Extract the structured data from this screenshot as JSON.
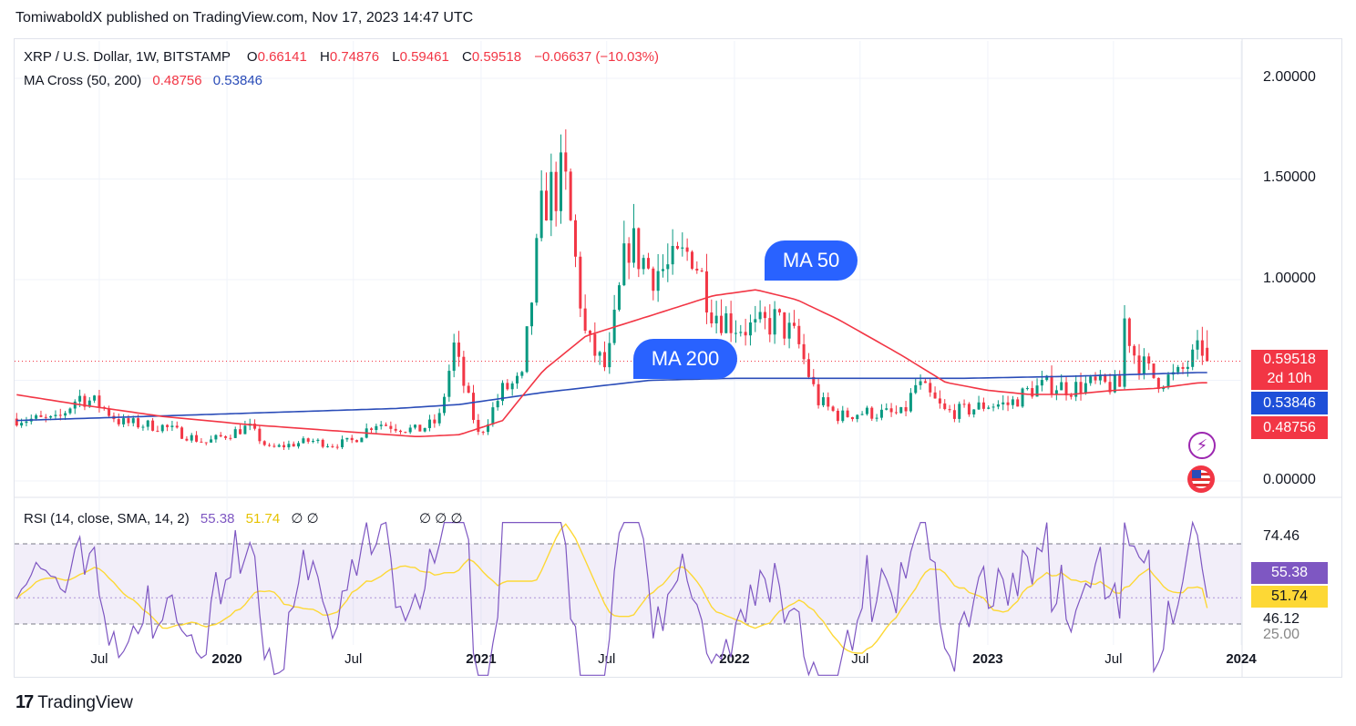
{
  "header": {
    "text": "TomiwaboldX published on TradingView.com, Nov 17, 2023 14:47 UTC"
  },
  "legend": {
    "symbol": "XRP / U.S. Dollar, 1W, BITSTAMP",
    "o_label": "O",
    "o_value": "0.66141",
    "h_label": "H",
    "h_value": "0.74876",
    "l_label": "L",
    "l_value": "0.59461",
    "c_label": "C",
    "c_value": "0.59518",
    "change": "−0.06637 (−10.03%)",
    "ma_label": "MA Cross (50, 200)",
    "ma50_value": "0.48756",
    "ma200_value": "0.53846",
    "rsi_label": "RSI (14, close, SMA, 14, 2)",
    "rsi_value": "55.38",
    "rsi_sma_value": "51.74",
    "rsi_extra": "∅  ∅",
    "rsi_div_markers": "∅  ∅  ∅"
  },
  "price_axis": [
    "2.00000",
    "1.50000",
    "1.00000",
    "0.00000"
  ],
  "price_tags": {
    "last": "0.59518",
    "countdown": "2d 10h",
    "ma200": "0.53846",
    "ma50": "0.48756"
  },
  "rsi_axis": [
    "74.46",
    "46.12",
    "25.00"
  ],
  "rsi_tags": {
    "rsi": "55.38",
    "sma": "51.74"
  },
  "time_axis": [
    "Jul",
    "2020",
    "Jul",
    "2021",
    "Jul",
    "2022",
    "Jul",
    "2023",
    "Jul",
    "2024"
  ],
  "callouts": {
    "ma50": "MA 50",
    "ma200": "MA 200"
  },
  "footer": {
    "brand": "TradingView"
  },
  "colors": {
    "up": "#089981",
    "down": "#f23645",
    "ma50": "#f23645",
    "ma200": "#2a4cb8",
    "rsi": "#7e57c2",
    "rsi_sma": "#fdd835"
  },
  "chart_data": {
    "type": "candlestick",
    "title": "XRP / U.S. Dollar, 1W, BITSTAMP",
    "ylim": [
      0,
      2.0
    ],
    "x_range": [
      "2019-03",
      "2024-01"
    ],
    "anchors_close": [
      [
        "2019-03",
        0.31
      ],
      [
        "2019-05",
        0.3
      ],
      [
        "2019-06",
        0.42
      ],
      [
        "2019-07",
        0.38
      ],
      [
        "2019-08",
        0.29
      ],
      [
        "2019-10",
        0.27
      ],
      [
        "2019-12",
        0.19
      ],
      [
        "2020-02",
        0.27
      ],
      [
        "2020-03",
        0.16
      ],
      [
        "2020-05",
        0.2
      ],
      [
        "2020-06",
        0.18
      ],
      [
        "2020-07",
        0.2
      ],
      [
        "2020-08",
        0.29
      ],
      [
        "2020-10",
        0.25
      ],
      [
        "2020-11",
        0.3
      ],
      [
        "2020-11-24",
        0.68
      ],
      [
        "2020-12",
        0.55
      ],
      [
        "2020-12-29",
        0.22
      ],
      [
        "2021-02",
        0.45
      ],
      [
        "2021-03",
        0.5
      ],
      [
        "2021-04",
        1.4
      ],
      [
        "2021-05",
        1.5
      ],
      [
        "2021-06",
        0.7
      ],
      [
        "2021-07",
        0.55
      ],
      [
        "2021-08",
        1.2
      ],
      [
        "2021-09",
        1.05
      ],
      [
        "2021-10",
        1.05
      ],
      [
        "2021-11",
        1.15
      ],
      [
        "2021-12",
        0.85
      ],
      [
        "2022-01",
        0.78
      ],
      [
        "2022-02",
        0.75
      ],
      [
        "2022-03",
        0.8
      ],
      [
        "2022-04",
        0.7
      ],
      [
        "2022-05",
        0.4
      ],
      [
        "2022-06",
        0.32
      ],
      [
        "2022-07",
        0.34
      ],
      [
        "2022-09",
        0.33
      ],
      [
        "2022-09-20",
        0.48
      ],
      [
        "2022-10",
        0.45
      ],
      [
        "2022-11",
        0.34
      ],
      [
        "2022-12",
        0.35
      ],
      [
        "2023-01",
        0.38
      ],
      [
        "2023-02",
        0.38
      ],
      [
        "2023-03",
        0.45
      ],
      [
        "2023-04",
        0.48
      ],
      [
        "2023-05",
        0.46
      ],
      [
        "2023-06",
        0.48
      ],
      [
        "2023-07-10",
        0.47
      ],
      [
        "2023-07-17",
        0.8
      ],
      [
        "2023-08",
        0.62
      ],
      [
        "2023-09",
        0.5
      ],
      [
        "2023-10",
        0.52
      ],
      [
        "2023-11-06",
        0.66
      ],
      [
        "2023-11-13",
        0.595
      ]
    ],
    "ma50": [
      [
        "2019-03",
        0.43
      ],
      [
        "2019-06",
        0.38
      ],
      [
        "2019-10",
        0.32
      ],
      [
        "2020-02",
        0.28
      ],
      [
        "2020-06",
        0.25
      ],
      [
        "2020-10",
        0.22
      ],
      [
        "2020-12",
        0.23
      ],
      [
        "2021-02",
        0.3
      ],
      [
        "2021-03",
        0.42
      ],
      [
        "2021-04",
        0.55
      ],
      [
        "2021-06",
        0.72
      ],
      [
        "2021-09",
        0.82
      ],
      [
        "2021-12",
        0.92
      ],
      [
        "2022-02",
        0.95
      ],
      [
        "2022-04",
        0.9
      ],
      [
        "2022-06",
        0.8
      ],
      [
        "2022-09",
        0.62
      ],
      [
        "2022-11",
        0.49
      ],
      [
        "2023-01",
        0.45
      ],
      [
        "2023-03",
        0.43
      ],
      [
        "2023-05",
        0.43
      ],
      [
        "2023-07",
        0.45
      ],
      [
        "2023-09",
        0.46
      ],
      [
        "2023-11",
        0.4876
      ]
    ],
    "ma200": [
      [
        "2019-03",
        0.3
      ],
      [
        "2019-09",
        0.32
      ],
      [
        "2020-03",
        0.34
      ],
      [
        "2020-09",
        0.36
      ],
      [
        "2020-12",
        0.38
      ],
      [
        "2021-04",
        0.44
      ],
      [
        "2021-09",
        0.5
      ],
      [
        "2022-01",
        0.51
      ],
      [
        "2022-06",
        0.51
      ],
      [
        "2022-12",
        0.51
      ],
      [
        "2023-05",
        0.52
      ],
      [
        "2023-11",
        0.5385
      ]
    ],
    "last": {
      "open": 0.66141,
      "high": 0.74876,
      "low": 0.59461,
      "close": 0.59518
    },
    "rsi": {
      "ylim": [
        25,
        80
      ],
      "levels": [
        74.46,
        46.12
      ],
      "value": 55.38,
      "sma": 51.74
    }
  }
}
